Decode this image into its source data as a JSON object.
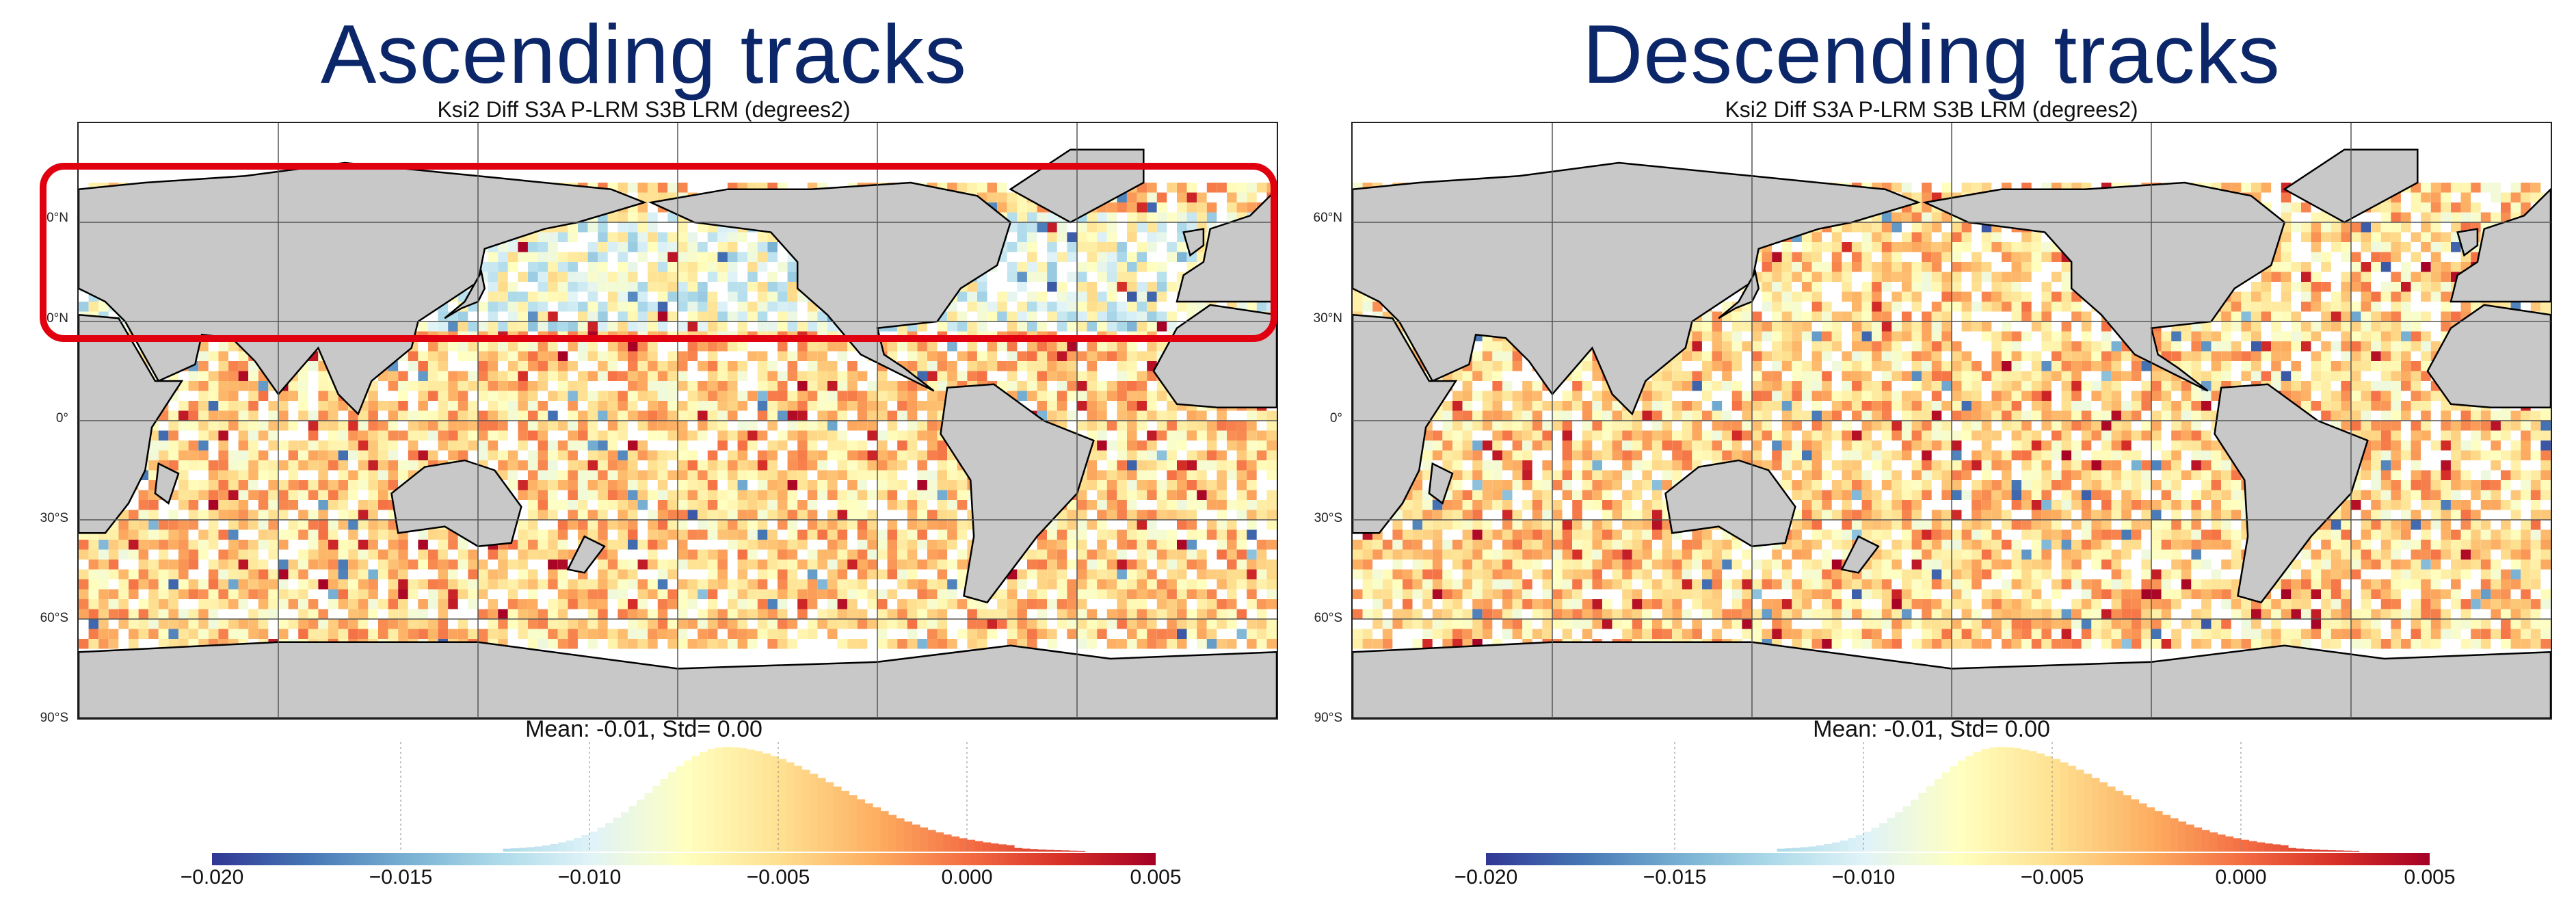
{
  "panels": [
    {
      "title": "Ascending tracks",
      "map_title": "Ksi2 Diff S3A P-LRM S3B LRM (degrees2)",
      "stats": "Mean: -0.01, Std= 0.00"
    },
    {
      "title": "Descending tracks",
      "map_title": "Ksi2 Diff S3A P-LRM S3B LRM (degrees2)",
      "stats": "Mean: -0.01, Std= 0.00"
    }
  ],
  "lat_labels": [
    "60°N",
    "30°N",
    "0°",
    "30°S",
    "60°S",
    "90°S"
  ],
  "colorbar_ticks": [
    "−0.020",
    "−0.015",
    "−0.010",
    "−0.005",
    "0.000",
    "0.005"
  ],
  "colorbar_range": [
    -0.02,
    0.005
  ],
  "colors": {
    "title": "#0c2769",
    "land": "#c8c8c8",
    "highlight": "#e0000f",
    "colormap": [
      "#313695",
      "#4575b4",
      "#74add1",
      "#abd9e9",
      "#e0f3f8",
      "#ffffbf",
      "#fee090",
      "#fdae61",
      "#f46d43",
      "#d73027",
      "#a50026"
    ]
  },
  "highlight_region": "ascending northern hemisphere 30°N-70°N"
}
